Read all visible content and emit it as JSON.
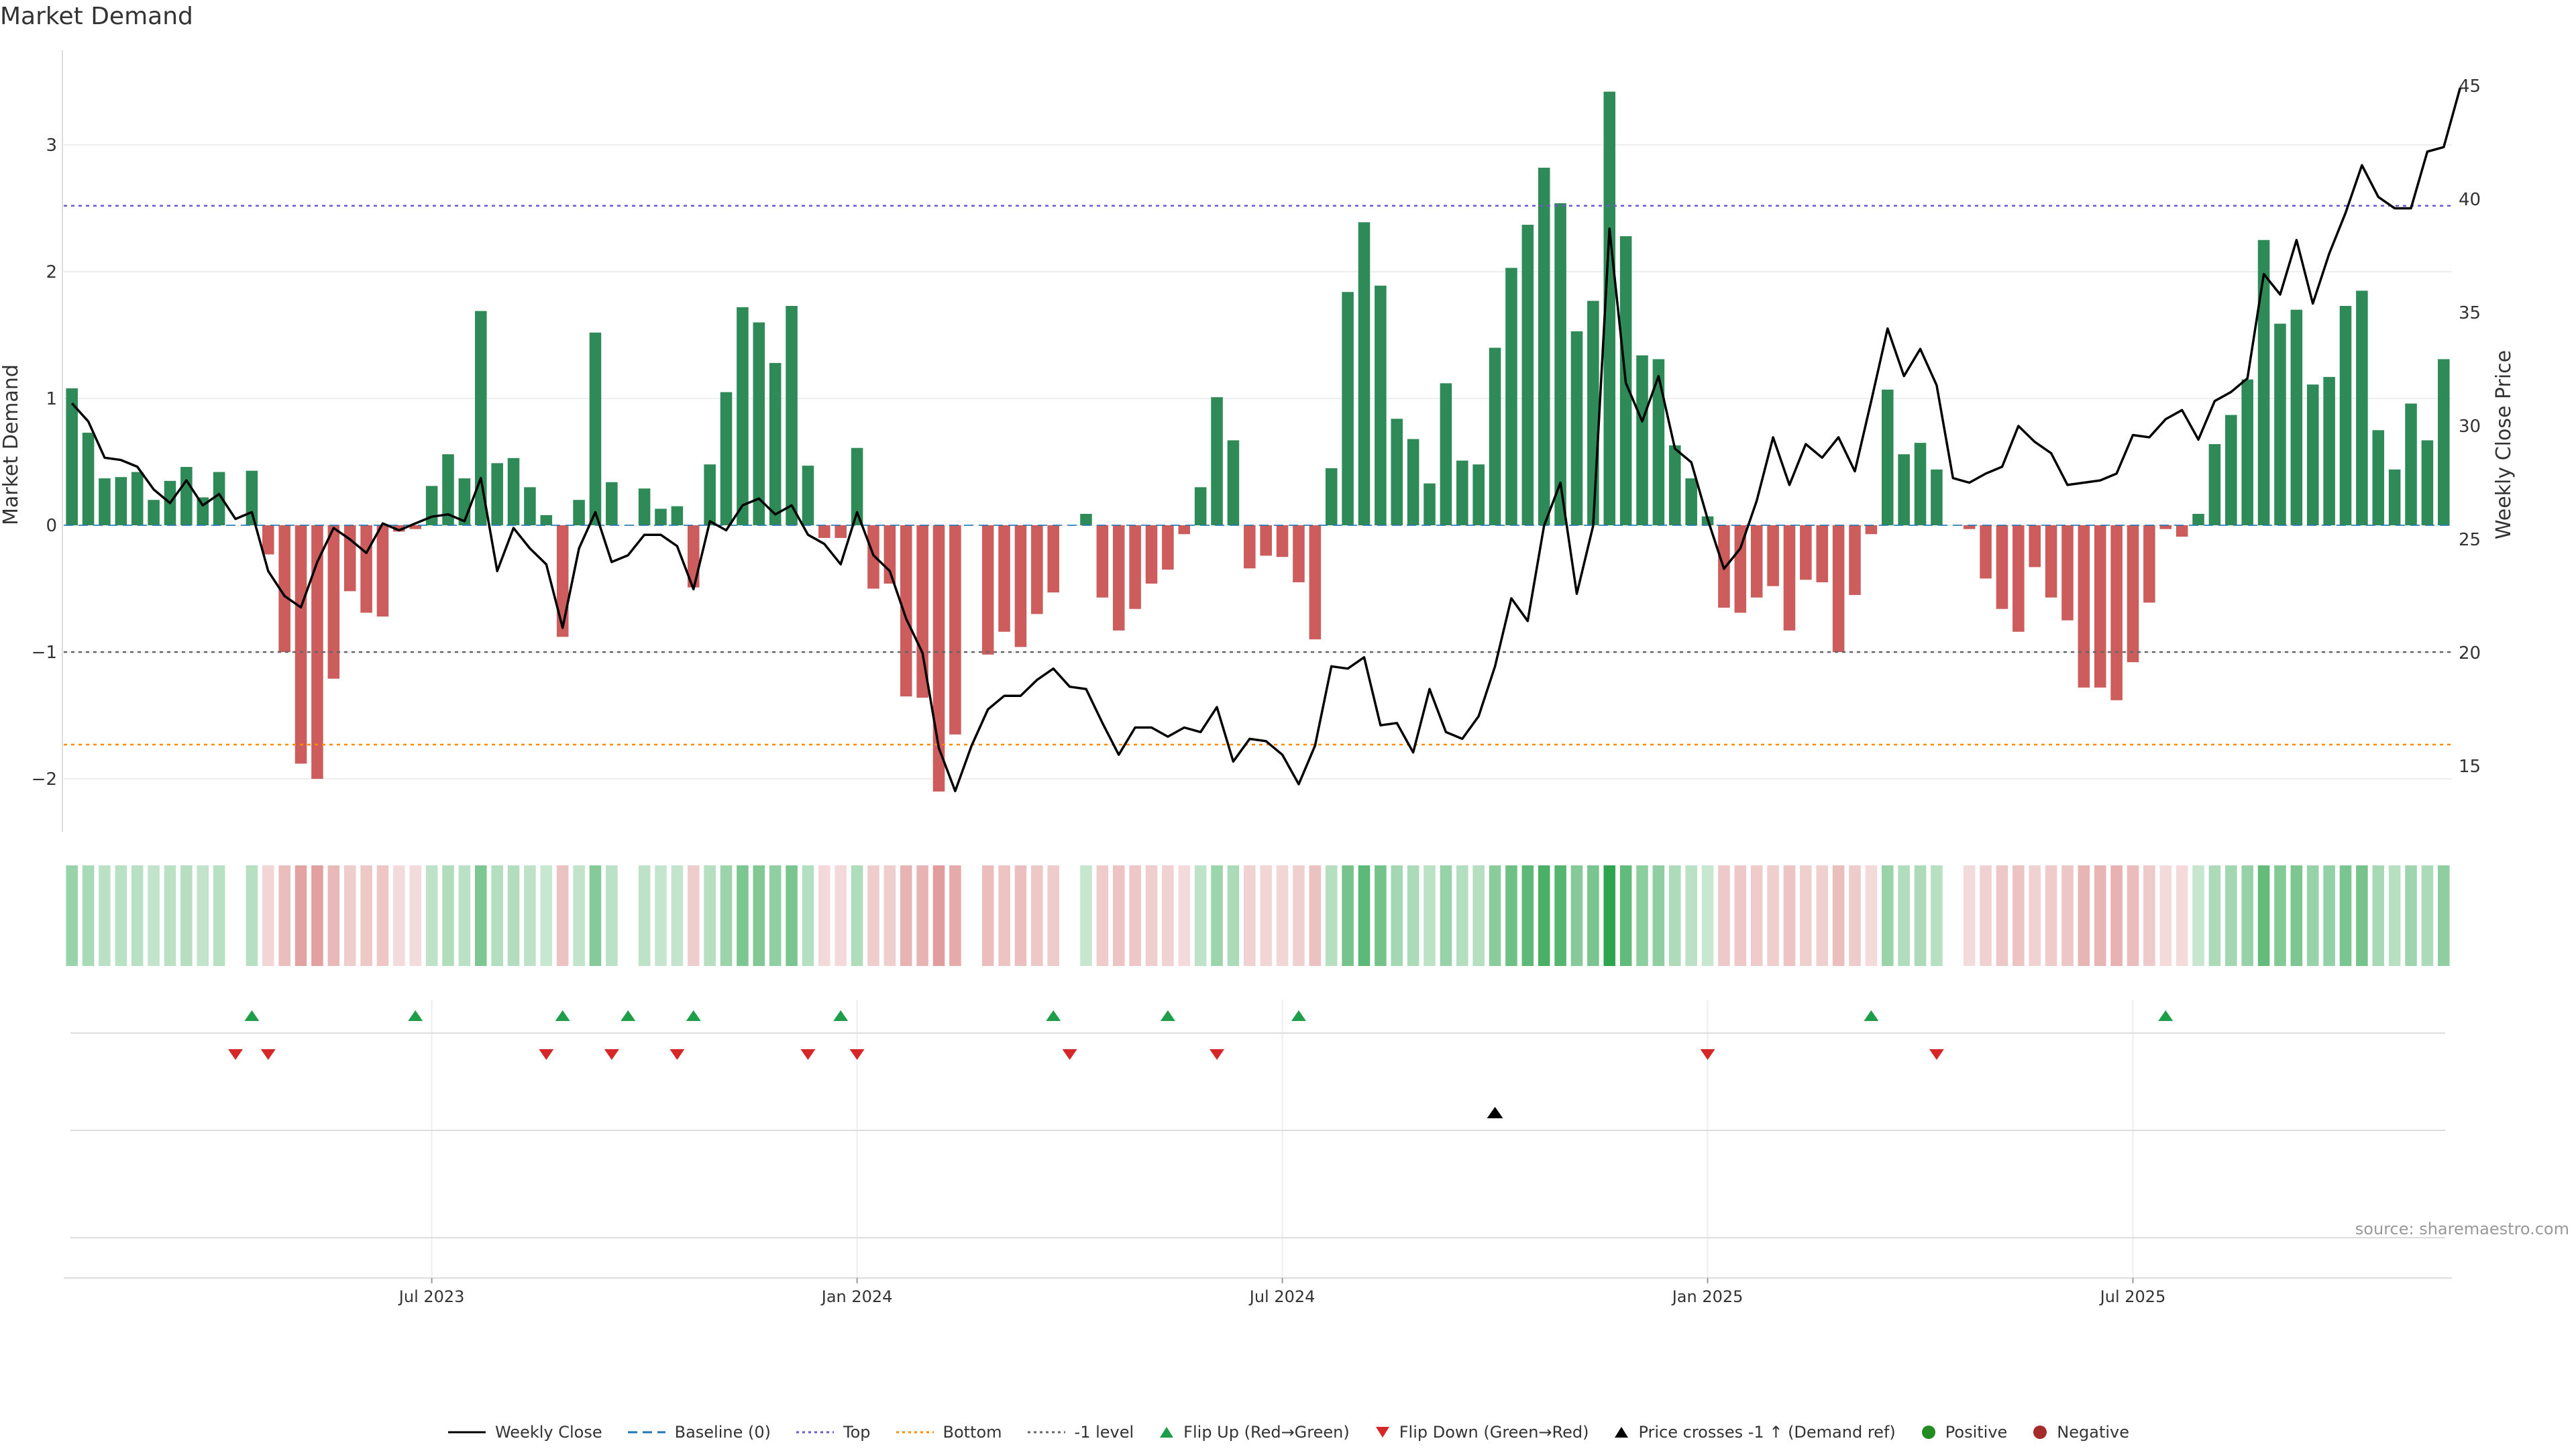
{
  "title": "Market Demand",
  "source": "source: sharemaestro.com",
  "colors": {
    "positive_bar": "#2e8b57",
    "negative_bar": "#cd5c5c",
    "line": "#000000",
    "top": "#6a5acd",
    "bottom": "#ff8c00",
    "minus1": "#666666",
    "flip_up": "#1e9e48",
    "flip_down": "#d62728",
    "positive_dot": "#228b22",
    "negative_dot": "#a52a2a"
  },
  "legend": [
    {
      "label": "Weekly Close",
      "kind": "line",
      "color": "#000000"
    },
    {
      "label": "Baseline (0)",
      "kind": "dash",
      "color": "#1f77b4"
    },
    {
      "label": "Top",
      "kind": "dot",
      "color": "#6a5acd"
    },
    {
      "label": "Bottom",
      "kind": "dot",
      "color": "#ff8c00"
    },
    {
      "label": "-1 level",
      "kind": "dot",
      "color": "#666666"
    },
    {
      "label": "Flip Up (Red→Green)",
      "kind": "tri-up",
      "color": "#1e9e48"
    },
    {
      "label": "Flip Down (Green→Red)",
      "kind": "tri-down",
      "color": "#d62728"
    },
    {
      "label": "Price crosses -1 ↑ (Demand ref)",
      "kind": "tri-up",
      "color": "#000000"
    },
    {
      "label": "Positive",
      "kind": "circle",
      "color": "#228b22"
    },
    {
      "label": "Negative",
      "kind": "circle",
      "color": "#a52a2a"
    }
  ],
  "chart_data": {
    "type": "bar",
    "title": "Market Demand",
    "ylabel": "Market Demand",
    "y2label": "Weekly Close Price",
    "ylim": [
      -2.4,
      3.7
    ],
    "y2lim": [
      12.5,
      48
    ],
    "yticks": [
      "3",
      "2",
      "1",
      "0",
      "−1",
      "−2"
    ],
    "ytick_values": [
      3,
      2,
      1,
      0,
      -1,
      -2
    ],
    "y2ticks": [
      45,
      40,
      35,
      30,
      25,
      20,
      15
    ],
    "xticks": [
      {
        "label": "Jul 2023",
        "index": 22
      },
      {
        "label": "Jan 2024",
        "index": 48
      },
      {
        "label": "Jul 2024",
        "index": 74
      },
      {
        "label": "Jan 2025",
        "index": 100
      },
      {
        "label": "Jul 2025",
        "index": 126
      }
    ],
    "reference_lines": {
      "top": 2.52,
      "bottom": -1.73,
      "minus1": -1,
      "baseline": 0
    },
    "demand": [
      1.08,
      0.73,
      0.37,
      0.38,
      0.42,
      0.2,
      0.35,
      0.46,
      0.22,
      0.42,
      0.0,
      0.43,
      -0.23,
      -1.0,
      -1.88,
      -2.0,
      -1.21,
      -0.52,
      -0.69,
      -0.72,
      -0.05,
      -0.03,
      0.31,
      0.56,
      0.37,
      1.69,
      0.49,
      0.53,
      0.3,
      0.08,
      -0.88,
      0.2,
      1.52,
      0.34,
      0.0,
      0.29,
      0.13,
      0.15,
      -0.49,
      0.48,
      1.05,
      1.72,
      1.6,
      1.28,
      1.73,
      0.47,
      -0.1,
      -0.1,
      0.61,
      -0.5,
      -0.46,
      -1.35,
      -1.36,
      -2.1,
      -1.65,
      0.0,
      -1.02,
      -0.84,
      -0.96,
      -0.7,
      -0.53,
      0.0,
      0.09,
      -0.57,
      -0.83,
      -0.66,
      -0.46,
      -0.35,
      -0.07,
      0.3,
      1.01,
      0.67,
      -0.34,
      -0.24,
      -0.25,
      -0.45,
      -0.9,
      0.45,
      1.84,
      2.39,
      1.89,
      0.84,
      0.68,
      0.33,
      1.12,
      0.51,
      0.48,
      1.4,
      2.03,
      2.37,
      2.82,
      2.54,
      1.53,
      1.77,
      3.42,
      2.28,
      1.34,
      1.31,
      0.63,
      0.37,
      0.07,
      -0.65,
      -0.69,
      -0.57,
      -0.48,
      -0.83,
      -0.43,
      -0.45,
      -1.0,
      -0.55,
      -0.07,
      1.07,
      0.56,
      0.65,
      0.44,
      0.0,
      -0.03,
      -0.42,
      -0.66,
      -0.84,
      -0.33,
      -0.57,
      -0.75,
      -1.28,
      -1.28,
      -1.38,
      -1.08,
      -0.61,
      -0.03,
      -0.09,
      0.09,
      0.64,
      0.87,
      1.15,
      2.25,
      1.59,
      1.7,
      1.11,
      1.17,
      1.73,
      1.85,
      0.75,
      0.44,
      0.96,
      0.67,
      1.31
    ],
    "close": [
      31.0,
      30.2,
      28.6,
      28.5,
      28.2,
      27.2,
      26.6,
      27.6,
      26.5,
      27.0,
      25.9,
      26.2,
      23.6,
      22.5,
      22.0,
      24.0,
      25.5,
      25.0,
      24.4,
      25.7,
      25.4,
      25.7,
      26.0,
      26.1,
      25.8,
      27.7,
      23.6,
      25.5,
      24.6,
      23.9,
      21.1,
      24.6,
      26.2,
      24.0,
      24.3,
      25.2,
      25.2,
      24.7,
      22.8,
      25.8,
      25.4,
      26.5,
      26.8,
      26.1,
      26.5,
      25.2,
      24.8,
      23.9,
      26.2,
      24.3,
      23.6,
      21.5,
      20.0,
      15.8,
      13.9,
      15.9,
      17.5,
      18.1,
      18.1,
      18.8,
      19.3,
      18.5,
      18.4,
      16.9,
      15.5,
      16.7,
      16.7,
      16.3,
      16.7,
      16.5,
      17.6,
      15.2,
      16.2,
      16.1,
      15.5,
      14.2,
      15.9,
      19.4,
      19.3,
      19.8,
      16.8,
      16.9,
      15.6,
      18.4,
      16.5,
      16.2,
      17.2,
      19.4,
      22.4,
      21.4,
      25.6,
      27.5,
      22.6,
      25.6,
      38.7,
      31.9,
      30.2,
      32.2,
      29.0,
      28.4,
      25.9,
      23.7,
      24.6,
      26.7,
      29.5,
      27.4,
      29.2,
      28.6,
      29.5,
      28.0,
      31.1,
      34.3,
      32.2,
      33.4,
      31.8,
      27.7,
      27.5,
      27.9,
      28.2,
      30.0,
      29.3,
      28.8,
      27.4,
      27.5,
      27.6,
      27.9,
      29.6,
      29.5,
      30.3,
      30.7,
      29.4,
      31.1,
      31.5,
      32.1,
      36.7,
      35.8,
      38.2,
      35.4,
      37.6,
      39.4,
      41.5,
      40.1,
      39.6,
      39.6,
      42.1,
      42.3,
      44.9
    ],
    "flip_up_idx": [
      11,
      21,
      30,
      34,
      38,
      47,
      60,
      67,
      75,
      110,
      128
    ],
    "flip_down_idx": [
      10,
      12,
      29,
      33,
      37,
      45,
      48,
      61,
      70,
      100,
      114
    ],
    "price_cross_idx": [
      87
    ]
  }
}
